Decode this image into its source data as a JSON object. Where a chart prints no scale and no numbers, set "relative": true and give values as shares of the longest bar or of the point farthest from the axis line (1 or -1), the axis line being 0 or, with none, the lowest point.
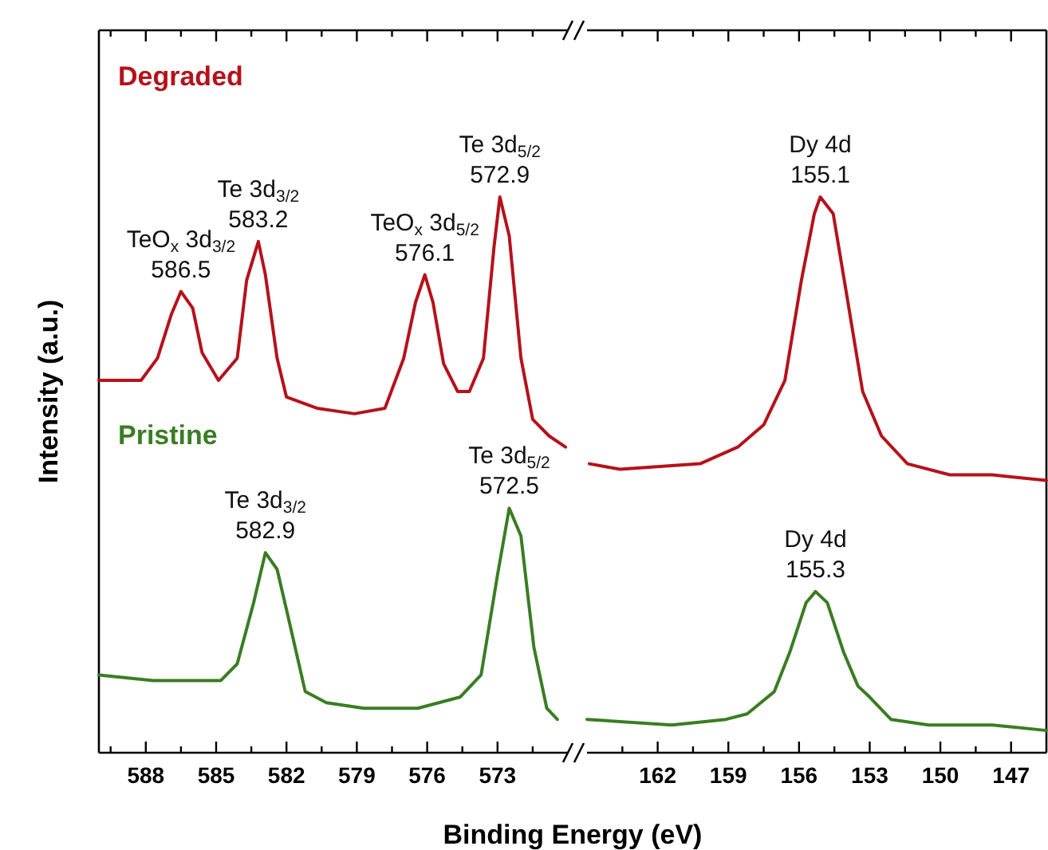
{
  "chart_data": [
    {
      "type": "line",
      "relative": true,
      "xlabel": "Binding Energy (eV)",
      "ylabel": "Intensity (a.u.)",
      "tick_labels": "x",
      "xlim": [
        590,
        570
      ],
      "xticks": [
        {
          "value": 589.5,
          "label": null
        },
        588,
        {
          "value": 586.5,
          "label": null
        },
        585,
        {
          "value": 583.5,
          "label": null
        },
        582,
        {
          "value": 580.5,
          "label": null
        },
        579,
        {
          "value": 577.5,
          "label": null
        },
        576,
        {
          "value": 574.5,
          "label": null
        },
        573,
        {
          "value": 571.5,
          "label": null
        }
      ],
      "series": [
        {
          "name": "Degraded",
          "color": "#b5121b",
          "x": [
            590,
            588.2,
            587.5,
            586.9,
            586.5,
            586.0,
            585.6,
            584.9,
            584.1,
            583.7,
            583.2,
            582.9,
            582.4,
            582.0,
            580.7,
            579.1,
            577.8,
            577.0,
            576.5,
            576.1,
            575.75,
            575.3,
            574.7,
            574.2,
            573.6,
            573.15,
            572.9,
            572.5,
            572.0,
            571.5,
            570.8,
            570.1
          ],
          "values": [
            0.67,
            0.67,
            0.71,
            0.79,
            0.83,
            0.8,
            0.72,
            0.67,
            0.71,
            0.85,
            0.92,
            0.86,
            0.71,
            0.64,
            0.62,
            0.61,
            0.62,
            0.71,
            0.81,
            0.86,
            0.81,
            0.7,
            0.65,
            0.65,
            0.71,
            0.91,
            1,
            0.93,
            0.71,
            0.6,
            0.57,
            0.55
          ]
        },
        {
          "name": "Pristine",
          "color": "#3a7d23",
          "x": [
            590,
            587.7,
            584.8,
            584.1,
            583.4,
            582.9,
            582.4,
            581.85,
            581.2,
            580.3,
            578.7,
            576.4,
            574.6,
            573.7,
            573.0,
            572.5,
            572.0,
            571.45,
            570.9,
            570.45
          ],
          "values": [
            0.14,
            0.13,
            0.13,
            0.16,
            0.27,
            0.36,
            0.33,
            0.23,
            0.11,
            0.09,
            0.08,
            0.08,
            0.1,
            0.14,
            0.32,
            0.44,
            0.39,
            0.19,
            0.08,
            0.06
          ]
        }
      ],
      "annotations": [
        {
          "text": "TeO$_{x}$ 3d$_{3/2}$\n586.5",
          "x": 586.5,
          "y": 0.83
        },
        {
          "text": "Te 3d$_{3/2}$\n583.2",
          "x": 583.2,
          "y": 0.92
        },
        {
          "text": "TeO$_{x}$ 3d$_{5/2}$\n576.1",
          "x": 576.1,
          "y": 0.86
        },
        {
          "text": "Te 3d$_{5/2}$\n572.9",
          "x": 572.9,
          "y": 1
        },
        {
          "text": "Te 3d$_{3/2}$\n582.9",
          "x": 582.9,
          "y": 0.36
        },
        {
          "text": "Te 3d$_{5/2}$\n572.5",
          "x": 572.5,
          "y": 0.44
        }
      ]
    },
    {
      "type": "line",
      "relative": true,
      "tick_labels": "x",
      "xlim": [
        165,
        145.5
      ],
      "xticks": [
        {
          "value": 163.5,
          "label": null
        },
        162,
        {
          "value": 160.5,
          "label": null
        },
        159,
        {
          "value": 157.5,
          "label": null
        },
        156,
        {
          "value": 154.5,
          "label": null
        },
        153,
        {
          "value": 151.5,
          "label": null
        },
        150,
        {
          "value": 148.5,
          "label": null
        },
        147
      ],
      "series": [
        {
          "color": "#b5121b",
          "x": [
            164.9,
            163.6,
            160.2,
            158.6,
            157.5,
            156.6,
            155.9,
            155.35,
            155.1,
            154.55,
            154.0,
            153.3,
            152.5,
            151.4,
            149.6,
            147.8,
            145.5
          ],
          "values": [
            0.52,
            0.51,
            0.52,
            0.55,
            0.59,
            0.67,
            0.85,
            0.97,
            1,
            0.97,
            0.83,
            0.65,
            0.57,
            0.52,
            0.5,
            0.5,
            0.49
          ]
        },
        {
          "color": "#3a7d23",
          "x": [
            165,
            161.4,
            159.1,
            158.2,
            157.05,
            156.4,
            155.7,
            155.3,
            154.8,
            154.1,
            153.5,
            153.0,
            152.1,
            150.5,
            147.8,
            145.5
          ],
          "values": [
            0.06,
            0.05,
            0.06,
            0.07,
            0.11,
            0.18,
            0.27,
            0.29,
            0.27,
            0.18,
            0.12,
            0.1,
            0.06,
            0.05,
            0.05,
            0.04
          ]
        }
      ],
      "annotations": [
        {
          "text": "Dy 4d\n155.1",
          "x": 155.1,
          "y": 1
        },
        {
          "text": "Dy 4d\n155.3",
          "x": 155.3,
          "y": 0.29
        }
      ]
    }
  ]
}
